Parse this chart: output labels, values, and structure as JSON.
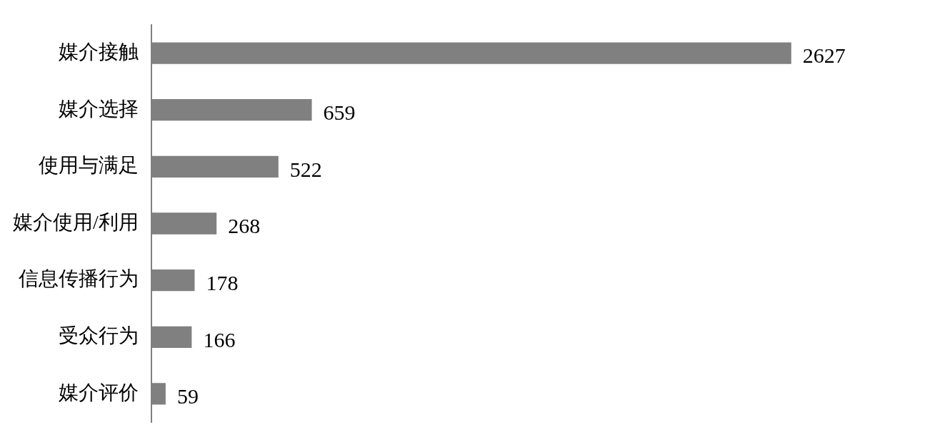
{
  "chart_data": {
    "type": "bar",
    "orientation": "horizontal",
    "categories": [
      "媒介接触",
      "媒介选择",
      "使用与满足",
      "媒介使用/利用",
      "信息传播行为",
      "受众行为",
      "媒介评价"
    ],
    "values": [
      2627,
      659,
      522,
      268,
      178,
      166,
      59
    ],
    "color": "#808080",
    "data_labels": true,
    "tick_labels": "y"
  }
}
